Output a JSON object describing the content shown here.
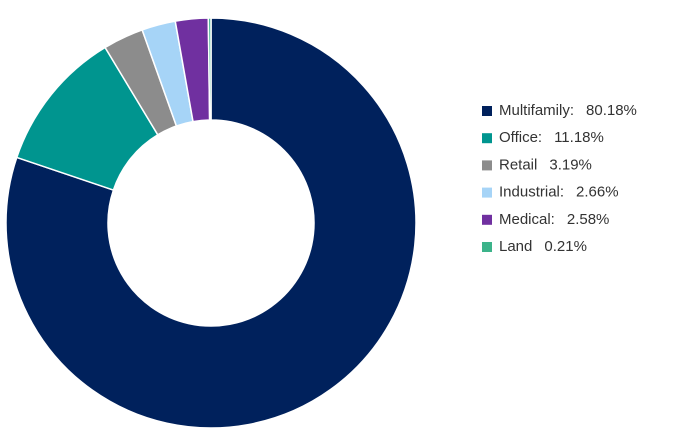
{
  "chart_data": {
    "type": "donut",
    "categories": [
      "Multifamily:",
      "Office:",
      "Retail",
      "Industrial:",
      "Medical:",
      "Land"
    ],
    "values": [
      80.18,
      11.18,
      3.19,
      2.66,
      2.58,
      0.21
    ],
    "value_labels": [
      "80.18%",
      "11.18%",
      "3.19%",
      "2.66%",
      "2.58%",
      "0.21%"
    ],
    "colors": [
      "#00215c",
      "#00958f",
      "#8c8c8c",
      "#a6d4f7",
      "#7030a0",
      "#3cb38a"
    ],
    "legend": "right"
  }
}
